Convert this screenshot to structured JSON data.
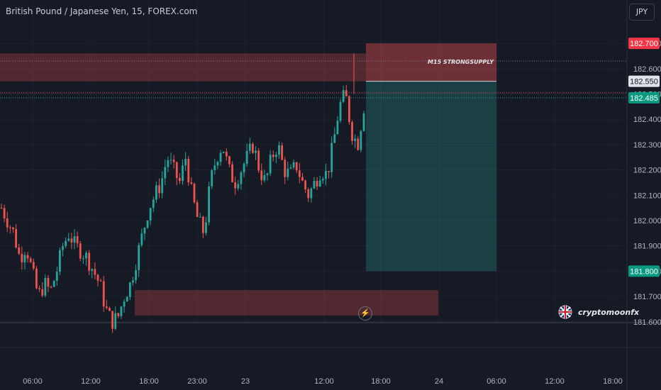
{
  "legend": {
    "title": "British Pound / Japanese Yen, 15, FOREX.com"
  },
  "toolbar": {
    "currency": "JPY"
  },
  "watermark": {
    "name": "cryptomoonfx"
  },
  "colors": {
    "background": "#161a25",
    "up": "#26a69a",
    "down": "#ef5350",
    "supply_zone": "#ef5350",
    "target_zone": "#26a69a",
    "grid": "#1f2330"
  },
  "chart_data": {
    "type": "candlestick",
    "title": "British Pound / Japanese Yen, 15, FOREX.com",
    "ylim": [
      181.6,
      182.75
    ],
    "y_ticks": [
      "181.600",
      "181.700",
      "181.800",
      "181.900",
      "182.000",
      "182.100",
      "182.200",
      "182.300",
      "182.400",
      "182.500",
      "182.600",
      "182.700"
    ],
    "x_ticks": [
      "06:00",
      "12:00",
      "18:00",
      "23:00",
      "23",
      "12:00",
      "18:00",
      "24",
      "06:00",
      "12:00",
      "18:00"
    ],
    "price_tags": [
      {
        "label": "182.700",
        "value": 182.7,
        "color": "#f23645"
      },
      {
        "label": "182.550",
        "value": 182.55,
        "color": "#e0e3eb"
      },
      {
        "label": "182.485",
        "value": 182.485,
        "color": "#089981"
      },
      {
        "label": "181.800",
        "value": 181.8,
        "color": "#089981"
      }
    ],
    "annotations": [
      {
        "type": "zone",
        "label": "",
        "from": 182.55,
        "to": 182.66,
        "color": "red"
      },
      {
        "type": "zone",
        "label": "M15 STRONGSUPPLY",
        "from": 182.55,
        "to": 182.7,
        "color": "red"
      },
      {
        "type": "zone",
        "label": "",
        "from": 181.8,
        "to": 182.55,
        "color": "green"
      },
      {
        "type": "zone",
        "label": "",
        "from": 181.625,
        "to": 181.725,
        "color": "red"
      },
      {
        "type": "line",
        "label": "",
        "value": 182.485,
        "color": "teal"
      },
      {
        "type": "line",
        "label": "",
        "value": 182.505,
        "color": "red"
      },
      {
        "type": "line",
        "label": "",
        "value": 182.63,
        "color": "grey"
      }
    ],
    "close_path": [
      182.05,
      182.0,
      181.95,
      181.85,
      181.9,
      181.8,
      181.7,
      181.75,
      181.72,
      181.8,
      181.9,
      181.95,
      181.9,
      181.88,
      181.85,
      181.8,
      181.75,
      181.65,
      181.6,
      181.62,
      181.7,
      181.75,
      181.85,
      181.95,
      182.05,
      182.1,
      182.15,
      182.25,
      182.2,
      182.15,
      182.25,
      182.1,
      182.0,
      181.95,
      182.15,
      182.25,
      182.3,
      182.2,
      182.15,
      182.2,
      182.25,
      182.3,
      182.2,
      182.15,
      182.25,
      182.3,
      182.2,
      182.18,
      182.22,
      182.15,
      182.1,
      182.15,
      182.2,
      182.18,
      182.3,
      182.45,
      182.5,
      182.35,
      182.3,
      182.45
    ]
  }
}
